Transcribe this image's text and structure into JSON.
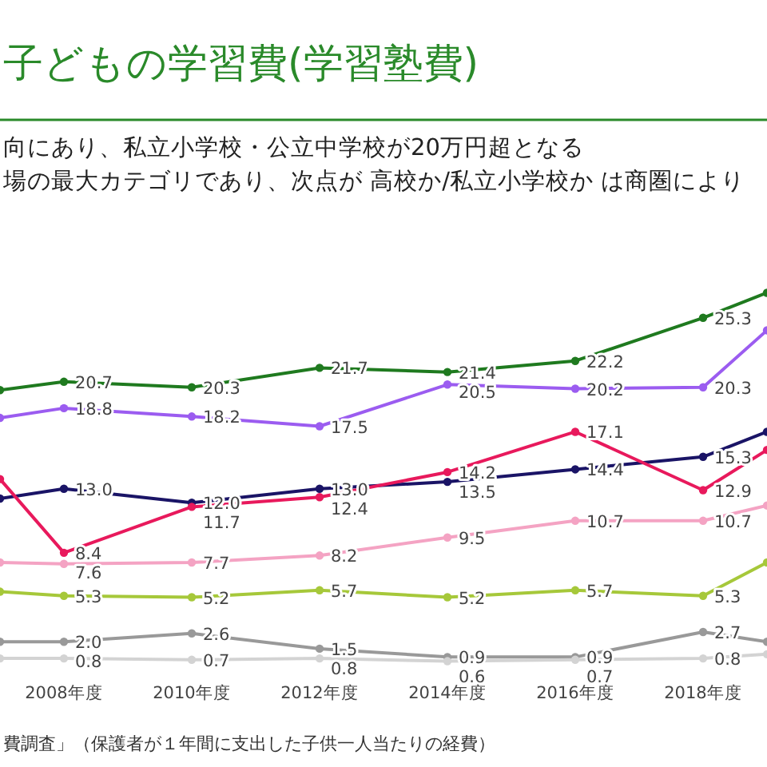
{
  "chart_data": {
    "type": "line",
    "title": "子どもの学習費(学習塾費)",
    "subtitle": "向にあり、私立小学校・公立中学校が20万円超となる",
    "x": [
      2007,
      2008,
      2010,
      2012,
      2014,
      2016,
      2018,
      2019
    ],
    "xlim": [
      2007,
      2019
    ],
    "xticks": [
      {
        "value": 2008,
        "label": "2008年度"
      },
      {
        "value": 2010,
        "label": "2010年度"
      },
      {
        "value": 2012,
        "label": "2012年度"
      },
      {
        "value": 2014,
        "label": "2014年度"
      },
      {
        "value": 2016,
        "label": "2016年度"
      },
      {
        "value": 2018,
        "label": "2018年度"
      }
    ],
    "tick_labels": "x",
    "marker": "circle",
    "series": [
      {
        "color": "#1f7a1f",
        "values": [
          20.1,
          20.7,
          20.3,
          21.7,
          21.4,
          22.2,
          25.3,
          27.1
        ],
        "value_labels": [
          null,
          "20.7",
          "20.3",
          "21.7",
          "21.4",
          "22.2",
          "25.3",
          null
        ]
      },
      {
        "color": "#9b5cf0",
        "values": [
          18.1,
          18.8,
          18.2,
          17.5,
          20.5,
          20.2,
          20.3,
          24.4
        ],
        "value_labels": [
          null,
          "18.8",
          "18.2",
          "17.5",
          "20.5",
          "20.2",
          "20.3",
          null
        ]
      },
      {
        "color": "#1a1466",
        "values": [
          12.3,
          13.0,
          12.0,
          13.0,
          13.5,
          14.4,
          15.3,
          17.1
        ],
        "value_labels": [
          null,
          "13.0",
          "12.0",
          "13.0",
          "13.5",
          "14.4",
          "15.3",
          null
        ]
      },
      {
        "color": "#e8195c",
        "values": [
          13.7,
          8.4,
          11.7,
          12.4,
          14.2,
          17.1,
          12.9,
          15.8
        ],
        "value_labels": [
          null,
          "8.4",
          "11.7",
          "12.4",
          "14.2",
          "17.1",
          "12.9",
          null
        ]
      },
      {
        "color": "#f4a3c3",
        "values": [
          7.7,
          7.6,
          7.7,
          8.2,
          9.5,
          10.7,
          10.7,
          11.8
        ],
        "value_labels": [
          null,
          "7.6",
          "7.7",
          "8.2",
          "9.5",
          "10.7",
          "10.7",
          null
        ]
      },
      {
        "color": "#a6c83a",
        "values": [
          5.6,
          5.3,
          5.2,
          5.7,
          5.2,
          5.7,
          5.3,
          7.7
        ],
        "value_labels": [
          null,
          "5.3",
          "5.2",
          "5.7",
          "5.2",
          "5.7",
          "5.3",
          null
        ]
      },
      {
        "color": "#999999",
        "values": [
          2.0,
          2.0,
          2.6,
          1.5,
          0.9,
          0.9,
          2.7,
          2.0
        ],
        "value_labels": [
          null,
          "2.0",
          "2.6",
          "1.5",
          "0.9",
          "0.9",
          "2.7",
          null
        ]
      },
      {
        "color": "#d3d3d3",
        "values": [
          0.8,
          0.8,
          0.7,
          0.8,
          0.6,
          0.7,
          0.8,
          1.1
        ],
        "value_labels": [
          null,
          "0.8",
          "0.7",
          "0.8",
          "0.6",
          "0.7",
          "0.8",
          null
        ]
      }
    ],
    "annotations": [
      "場の最大カテゴリであり、次点が 高校か/私立小学校か は商圏により",
      "費調査」（保護者が１年間に支出した子供一人当たりの経費）"
    ]
  }
}
